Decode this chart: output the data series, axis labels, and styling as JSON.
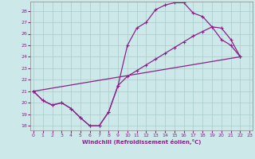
{
  "bg_color": "#cce8e8",
  "grid_color": "#aacccc",
  "line_color": "#882288",
  "xlabel": "Windchill (Refroidissement éolien,°C)",
  "xlim": [
    -0.3,
    23.3
  ],
  "ylim": [
    17.6,
    28.8
  ],
  "xticks": [
    0,
    1,
    2,
    3,
    4,
    5,
    6,
    7,
    8,
    9,
    10,
    11,
    12,
    13,
    14,
    15,
    16,
    17,
    18,
    19,
    20,
    21,
    22,
    23
  ],
  "yticks": [
    18,
    19,
    20,
    21,
    22,
    23,
    24,
    25,
    26,
    27,
    28
  ],
  "curve1_x": [
    0,
    1,
    2,
    3,
    4,
    5,
    6,
    7,
    8,
    9,
    10,
    11,
    12,
    13,
    14,
    15,
    16,
    17,
    18,
    19,
    20,
    21,
    22
  ],
  "curve1_y": [
    21.0,
    20.2,
    19.8,
    20.0,
    19.5,
    18.7,
    18.0,
    18.0,
    19.2,
    21.5,
    25.0,
    26.5,
    27.0,
    28.1,
    28.5,
    28.7,
    28.7,
    27.8,
    27.5,
    26.6,
    25.5,
    25.0,
    24.0
  ],
  "curve2_x": [
    0,
    1,
    2,
    3,
    4,
    5,
    6,
    7,
    8,
    9,
    10,
    11,
    12,
    13,
    14,
    15,
    16,
    17,
    18,
    19,
    20,
    21,
    22
  ],
  "curve2_y": [
    21.0,
    20.2,
    19.8,
    20.0,
    19.5,
    18.7,
    18.0,
    18.0,
    19.2,
    21.5,
    22.3,
    22.8,
    23.3,
    23.8,
    24.3,
    24.8,
    25.3,
    25.8,
    26.2,
    26.6,
    26.5,
    25.5,
    24.0
  ],
  "curve3_x": [
    0,
    22
  ],
  "curve3_y": [
    21.0,
    24.0
  ]
}
